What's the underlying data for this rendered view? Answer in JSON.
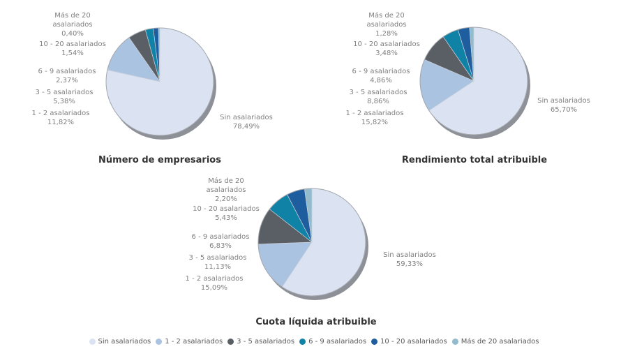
{
  "chart_data": [
    {
      "type": "pie",
      "title": "Número de empresarios",
      "categories": [
        "Sin asalariados",
        "1 - 2 asalariados",
        "3 - 5 asalariados",
        "6 - 9 asalariados",
        "10 - 20 asalariados",
        "Más de 20 asalariados"
      ],
      "values": [
        78.49,
        11.82,
        5.38,
        2.37,
        1.54,
        0.4
      ],
      "value_labels": [
        "78,49%",
        "11,82%",
        "5,38%",
        "2,37%",
        "1,54%",
        "0,40%"
      ],
      "start_angle": "top",
      "direction": "clockwise",
      "legend_position": "shared-bottom"
    },
    {
      "type": "pie",
      "title": "Rendimiento total atribuible",
      "categories": [
        "Sin asalariados",
        "1 - 2 asalariados",
        "3 - 5 asalariados",
        "6 - 9 asalariados",
        "10 - 20 asalariados",
        "Más de 20 asalariados"
      ],
      "values": [
        65.7,
        15.82,
        8.86,
        4.86,
        3.48,
        1.28
      ],
      "value_labels": [
        "65,70%",
        "15,82%",
        "8,86%",
        "4,86%",
        "3,48%",
        "1,28%"
      ],
      "start_angle": "top",
      "direction": "clockwise",
      "legend_position": "shared-bottom"
    },
    {
      "type": "pie",
      "title": "Cuota líquida atribuible",
      "categories": [
        "Sin asalariados",
        "1 - 2 asalariados",
        "3 - 5 asalariados",
        "6 - 9 asalariados",
        "10 - 20 asalariados",
        "Más de 20 asalariados"
      ],
      "values": [
        59.33,
        15.09,
        11.13,
        6.83,
        5.43,
        2.2
      ],
      "value_labels": [
        "59,33%",
        "15,09%",
        "11,13%",
        "6,83%",
        "5,43%",
        "2,20%"
      ],
      "start_angle": "top",
      "direction": "clockwise",
      "legend_position": "shared-bottom"
    }
  ],
  "legend": {
    "items": [
      {
        "label": "Sin asalariados",
        "color": "#dbe2f1"
      },
      {
        "label": "1 - 2 asalariados",
        "color": "#a9c3e0"
      },
      {
        "label": "3 - 5 asalariados",
        "color": "#5a5f65"
      },
      {
        "label": "6 - 9 asalariados",
        "color": "#0f82a5"
      },
      {
        "label": "10 - 20 asalariados",
        "color": "#1f5e9e"
      },
      {
        "label": "Más de 20 asalariados",
        "color": "#92bccd"
      }
    ]
  },
  "colors": {
    "background": "#ffffff",
    "shadow": "#8d9096",
    "rim": "#a3a7ae",
    "slice_border": "#ccd2dc",
    "callout_text": "#808080",
    "title_text": "#333333",
    "legend_text": "#595959"
  }
}
